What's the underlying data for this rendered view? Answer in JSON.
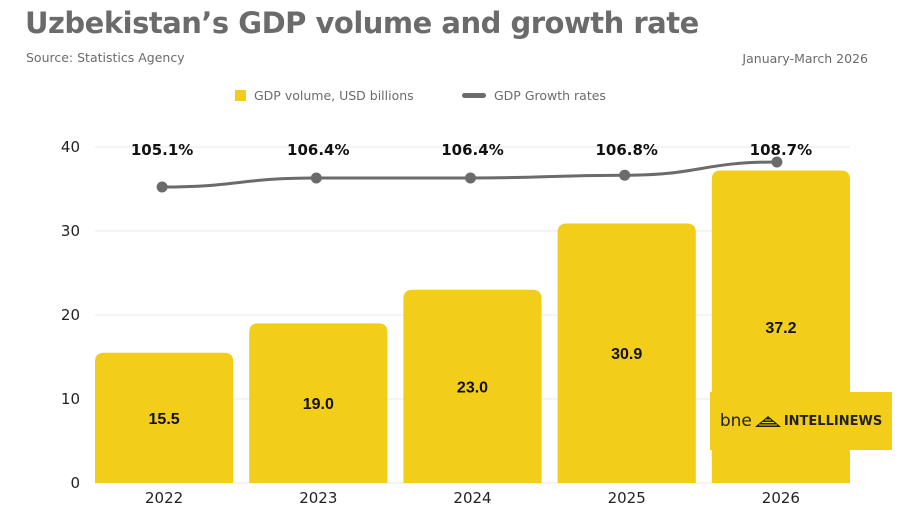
{
  "header": {
    "title": "Uzbekistan’s GDP volume and growth rate",
    "source": "Source: Statistics Agency",
    "period": "January-March 2026"
  },
  "legend": {
    "bar_label": "GDP volume, USD billions",
    "line_label": "GDP Growth rates"
  },
  "logo": {
    "bne": "bne",
    "intellinews": "INTELLINEWS"
  },
  "colors": {
    "bar": "#f2cd19",
    "line": "#6b6b6b",
    "grid": "#eeeeee",
    "title": "#6b6b6b"
  },
  "chart_data": {
    "type": "bar",
    "title": "Uzbekistan’s GDP volume and growth rate",
    "xlabel": "",
    "ylabel": "",
    "categories": [
      "2022",
      "2023",
      "2024",
      "2025",
      "2026"
    ],
    "ylim": [
      0,
      40
    ],
    "yticks": [
      0,
      10,
      20,
      30,
      40
    ],
    "grid": true,
    "legend_position": "top-center",
    "series": [
      {
        "name": "GDP volume, USD billions",
        "type": "bar",
        "values": [
          15.5,
          19.0,
          23.0,
          30.9,
          37.2
        ],
        "labels": [
          "15.5",
          "19.0",
          "23.0",
          "30.9",
          "37.2"
        ]
      },
      {
        "name": "GDP Growth rates",
        "type": "line",
        "values": [
          105.1,
          106.4,
          106.4,
          106.8,
          108.7
        ],
        "labels": [
          "105.1%",
          "106.4%",
          "106.4%",
          "106.8%",
          "108.7%"
        ],
        "unit": "%"
      }
    ]
  }
}
